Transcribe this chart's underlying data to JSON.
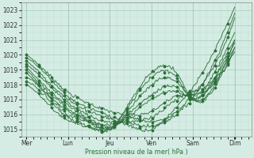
{
  "title": "",
  "xlabel": "Pression niveau de la mer( hPa )",
  "ylabel": "",
  "bg_color": "#d4ece3",
  "grid_color_major": "#a8ccbc",
  "grid_color_minor": "#beddd0",
  "line_color": "#2d6e3a",
  "ylim": [
    1014.5,
    1023.5
  ],
  "yticks": [
    1015,
    1016,
    1017,
    1018,
    1019,
    1020,
    1021,
    1022,
    1023
  ],
  "day_labels": [
    "Mer",
    "Lun",
    "Jeu",
    "Ven",
    "Sam",
    "Dim"
  ],
  "day_positions": [
    0.0,
    0.833,
    1.667,
    2.5,
    3.333,
    4.167
  ],
  "xlim": [
    -0.1,
    4.5
  ],
  "curves": [
    {
      "pts_x": [
        0.0,
        0.5,
        0.83,
        1.2,
        1.67,
        2.1,
        2.5,
        3.0,
        3.33,
        3.8,
        4.17
      ],
      "pts_y": [
        1020.0,
        1018.5,
        1017.5,
        1016.8,
        1016.2,
        1015.8,
        1015.5,
        1016.2,
        1017.3,
        1019.5,
        1022.5
      ]
    },
    {
      "pts_x": [
        0.0,
        0.5,
        0.83,
        1.2,
        1.67,
        2.1,
        2.5,
        3.0,
        3.33,
        3.8,
        4.17
      ],
      "pts_y": [
        1019.8,
        1018.3,
        1017.2,
        1016.5,
        1015.9,
        1015.4,
        1015.2,
        1016.0,
        1017.1,
        1019.8,
        1022.8
      ]
    },
    {
      "pts_x": [
        0.0,
        0.5,
        0.83,
        1.2,
        1.67,
        2.1,
        2.5,
        3.0,
        3.33,
        3.8,
        4.17
      ],
      "pts_y": [
        1019.6,
        1018.0,
        1017.0,
        1016.3,
        1015.7,
        1015.2,
        1015.0,
        1016.5,
        1017.8,
        1020.5,
        1023.2
      ]
    },
    {
      "pts_x": [
        0.0,
        0.5,
        0.83,
        1.2,
        1.67,
        2.1,
        2.5,
        3.0,
        3.33,
        3.8,
        4.17
      ],
      "pts_y": [
        1019.4,
        1017.8,
        1016.8,
        1016.0,
        1015.5,
        1015.5,
        1015.8,
        1017.0,
        1017.5,
        1018.5,
        1021.0
      ]
    },
    {
      "pts_x": [
        0.0,
        0.5,
        0.83,
        1.2,
        1.67,
        2.1,
        2.5,
        3.0,
        3.33,
        3.8,
        4.17
      ],
      "pts_y": [
        1019.2,
        1017.5,
        1016.6,
        1015.8,
        1015.3,
        1015.8,
        1016.2,
        1017.2,
        1017.3,
        1018.2,
        1020.5
      ]
    },
    {
      "pts_x": [
        0.0,
        0.5,
        0.83,
        1.2,
        1.67,
        2.1,
        2.5,
        3.0,
        3.33,
        3.8,
        4.17
      ],
      "pts_y": [
        1019.0,
        1017.3,
        1016.4,
        1015.7,
        1015.2,
        1016.0,
        1017.0,
        1017.5,
        1017.2,
        1019.0,
        1021.5
      ]
    },
    {
      "pts_x": [
        0.0,
        0.5,
        0.83,
        1.2,
        1.67,
        2.1,
        2.5,
        3.0,
        3.33,
        3.8,
        4.17
      ],
      "pts_y": [
        1018.8,
        1017.1,
        1016.2,
        1015.6,
        1015.1,
        1016.2,
        1017.3,
        1017.8,
        1017.0,
        1018.7,
        1021.0
      ]
    },
    {
      "pts_x": [
        0.0,
        0.5,
        0.83,
        1.2,
        1.67,
        2.1,
        2.5,
        3.0,
        3.33,
        3.8,
        4.17
      ],
      "pts_y": [
        1018.5,
        1017.0,
        1016.0,
        1015.5,
        1015.0,
        1016.5,
        1018.0,
        1018.2,
        1017.1,
        1018.5,
        1020.8
      ]
    },
    {
      "pts_x": [
        0.0,
        0.5,
        0.83,
        1.2,
        1.67,
        2.1,
        2.5,
        3.0,
        3.33,
        3.8,
        4.17
      ],
      "pts_y": [
        1018.2,
        1016.8,
        1015.8,
        1015.3,
        1015.0,
        1016.8,
        1018.5,
        1018.5,
        1017.0,
        1018.2,
        1020.5
      ]
    },
    {
      "pts_x": [
        0.0,
        0.5,
        0.83,
        1.2,
        1.67,
        2.1,
        2.5,
        3.0,
        3.33,
        3.8,
        4.17
      ],
      "pts_y": [
        1018.0,
        1016.5,
        1015.6,
        1015.2,
        1015.0,
        1017.0,
        1018.8,
        1018.8,
        1017.0,
        1018.0,
        1020.2
      ]
    }
  ]
}
